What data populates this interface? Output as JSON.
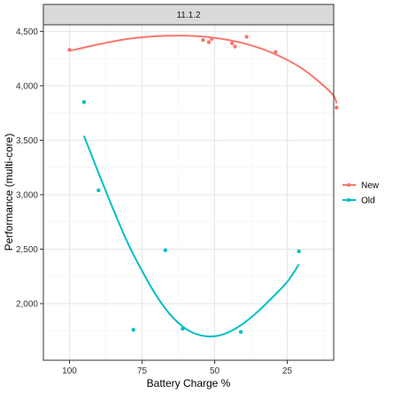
{
  "chart_data": {
    "type": "scatter",
    "facet_label": "11.1.2",
    "xlabel": "Battery Charge %",
    "ylabel": "Performance (multi-core)",
    "x_reversed": true,
    "xlim": [
      109,
      9
    ],
    "ylim": [
      1480,
      4560
    ],
    "xticks": [
      {
        "value": 100,
        "label": "100"
      },
      {
        "value": 75,
        "label": "75"
      },
      {
        "value": 50,
        "label": "50"
      },
      {
        "value": 25,
        "label": "25"
      }
    ],
    "yticks": [
      {
        "value": 2000,
        "label": "2,000"
      },
      {
        "value": 2500,
        "label": "2,500"
      },
      {
        "value": 3000,
        "label": "3,000"
      },
      {
        "value": 3500,
        "label": "3,500"
      },
      {
        "value": 4000,
        "label": "4,000"
      },
      {
        "value": 4500,
        "label": "4,500"
      }
    ],
    "grid": true,
    "legend_position": "right",
    "series": [
      {
        "name": "New",
        "color": "#F8766D",
        "points": [
          {
            "x": 100,
            "y": 4330
          },
          {
            "x": 54,
            "y": 4420
          },
          {
            "x": 52,
            "y": 4400
          },
          {
            "x": 51,
            "y": 4430
          },
          {
            "x": 44,
            "y": 4390
          },
          {
            "x": 43,
            "y": 4360
          },
          {
            "x": 39,
            "y": 4450
          },
          {
            "x": 29,
            "y": 4310
          },
          {
            "x": 8,
            "y": 3800
          }
        ],
        "trend": [
          {
            "x": 100,
            "y": 4320
          },
          {
            "x": 90,
            "y": 4380
          },
          {
            "x": 80,
            "y": 4430
          },
          {
            "x": 70,
            "y": 4455
          },
          {
            "x": 60,
            "y": 4460
          },
          {
            "x": 50,
            "y": 4440
          },
          {
            "x": 40,
            "y": 4390
          },
          {
            "x": 30,
            "y": 4300
          },
          {
            "x": 20,
            "y": 4160
          },
          {
            "x": 10,
            "y": 3940
          },
          {
            "x": 8,
            "y": 3840
          }
        ]
      },
      {
        "name": "Old",
        "color": "#00BFC4",
        "points": [
          {
            "x": 95,
            "y": 3850
          },
          {
            "x": 90,
            "y": 3040
          },
          {
            "x": 78,
            "y": 1760
          },
          {
            "x": 67,
            "y": 2490
          },
          {
            "x": 61,
            "y": 1770
          },
          {
            "x": 41,
            "y": 1740
          },
          {
            "x": 21,
            "y": 2480
          }
        ],
        "trend": [
          {
            "x": 95,
            "y": 3540
          },
          {
            "x": 90,
            "y": 3200
          },
          {
            "x": 85,
            "y": 2870
          },
          {
            "x": 80,
            "y": 2560
          },
          {
            "x": 75,
            "y": 2300
          },
          {
            "x": 70,
            "y": 2070
          },
          {
            "x": 65,
            "y": 1890
          },
          {
            "x": 60,
            "y": 1770
          },
          {
            "x": 55,
            "y": 1710
          },
          {
            "x": 50,
            "y": 1700
          },
          {
            "x": 45,
            "y": 1740
          },
          {
            "x": 40,
            "y": 1820
          },
          {
            "x": 35,
            "y": 1930
          },
          {
            "x": 30,
            "y": 2060
          },
          {
            "x": 25,
            "y": 2200
          },
          {
            "x": 21,
            "y": 2360
          }
        ]
      }
    ]
  }
}
